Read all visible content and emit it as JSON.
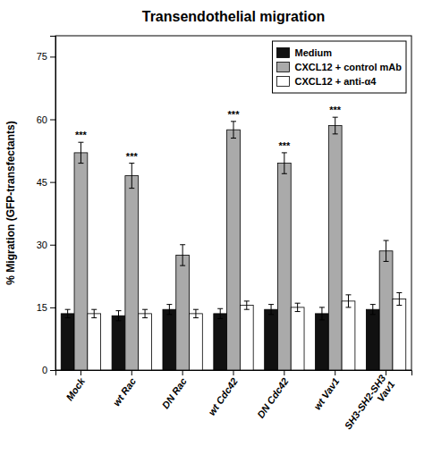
{
  "chart_data": {
    "type": "bar",
    "title": "Transendothelial migration",
    "ylabel": "% Migration (GFP-transfectants)",
    "categories": [
      "Mock",
      "wt Rac",
      "DN Rac",
      "wt Cdc42",
      "DN Cdc42",
      "wt Vav1",
      "SH3-SH2-SH3\nVav1"
    ],
    "series": [
      {
        "name": "Medium",
        "color": "#111111",
        "values": [
          13.5,
          13.0,
          14.5,
          13.5,
          14.5,
          13.5,
          14.5
        ],
        "errors": [
          1.0,
          1.2,
          1.2,
          1.2,
          1.2,
          1.5,
          1.2
        ]
      },
      {
        "name": "CXCL12 + control mAb",
        "color": "#aaaaaa",
        "values": [
          52.0,
          46.5,
          27.5,
          57.5,
          49.5,
          58.5,
          28.5
        ],
        "errors": [
          2.5,
          3.0,
          2.5,
          2.0,
          2.5,
          2.0,
          2.5
        ],
        "annotations": [
          "***",
          "***",
          null,
          "***",
          "***",
          "***",
          null
        ]
      },
      {
        "name": "CXCL12 + anti-α4",
        "color": "#ffffff",
        "values": [
          13.5,
          13.5,
          13.5,
          15.5,
          15.0,
          16.5,
          17.0
        ],
        "errors": [
          1.0,
          1.0,
          1.0,
          1.0,
          1.0,
          1.5,
          1.5
        ]
      }
    ],
    "ylim": [
      0,
      80
    ],
    "yticks": [
      0,
      15,
      30,
      45,
      60,
      75
    ],
    "legend": "upper right"
  }
}
